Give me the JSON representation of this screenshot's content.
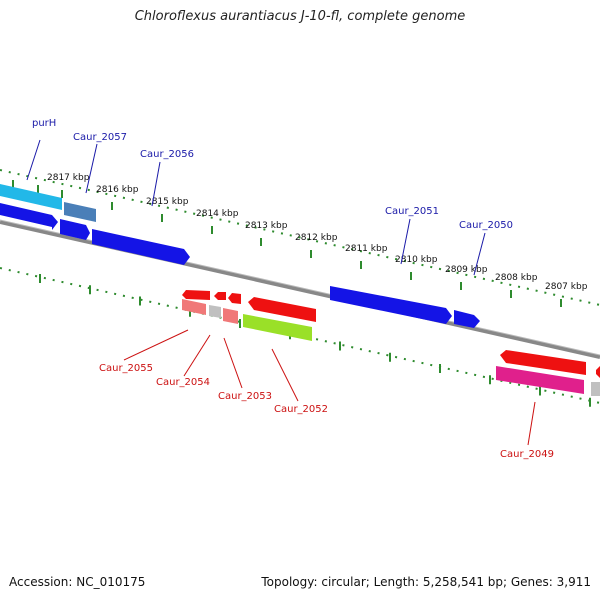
{
  "title": "Chloroflexus aurantiacus J-10-fl, complete genome",
  "footer": {
    "accession": "Accession: NC_010175",
    "summary": "Topology: circular; Length: 5,258,541 bp; Genes: 3,911"
  },
  "colors": {
    "forward_label": "#1a1aa8",
    "reverse_label": "#cc1111",
    "backbone": "#888888",
    "ticks": "#2e8b2e"
  },
  "ruler": [
    {
      "label": "2817 kbp"
    },
    {
      "label": "2816 kbp"
    },
    {
      "label": "2815 kbp"
    },
    {
      "label": "2814 kbp"
    },
    {
      "label": "2813 kbp"
    },
    {
      "label": "2812 kbp"
    },
    {
      "label": "2811 kbp"
    },
    {
      "label": "2810 kbp"
    },
    {
      "label": "2809 kbp"
    },
    {
      "label": "2808 kbp"
    },
    {
      "label": "2807 kbp"
    }
  ],
  "forward_genes": [
    {
      "label": "purH",
      "color": "#22b8e8"
    },
    {
      "label": "Caur_2057",
      "color": "#4a7fb8"
    },
    {
      "label": "Caur_2056",
      "color": "#1414e6"
    },
    {
      "label": "Caur_2051",
      "color": "#1414e6"
    },
    {
      "label": "Caur_2050",
      "color": "#1414e6"
    }
  ],
  "reverse_genes": [
    {
      "label": "Caur_2055",
      "color": "#f07878"
    },
    {
      "label": "Caur_2054",
      "color": "#c0c0c0"
    },
    {
      "label": "Caur_2053",
      "color": "#f07878"
    },
    {
      "label": "Caur_2052",
      "color": "#9ae028"
    },
    {
      "label": "Caur_2049",
      "color": "#e0208c"
    }
  ]
}
